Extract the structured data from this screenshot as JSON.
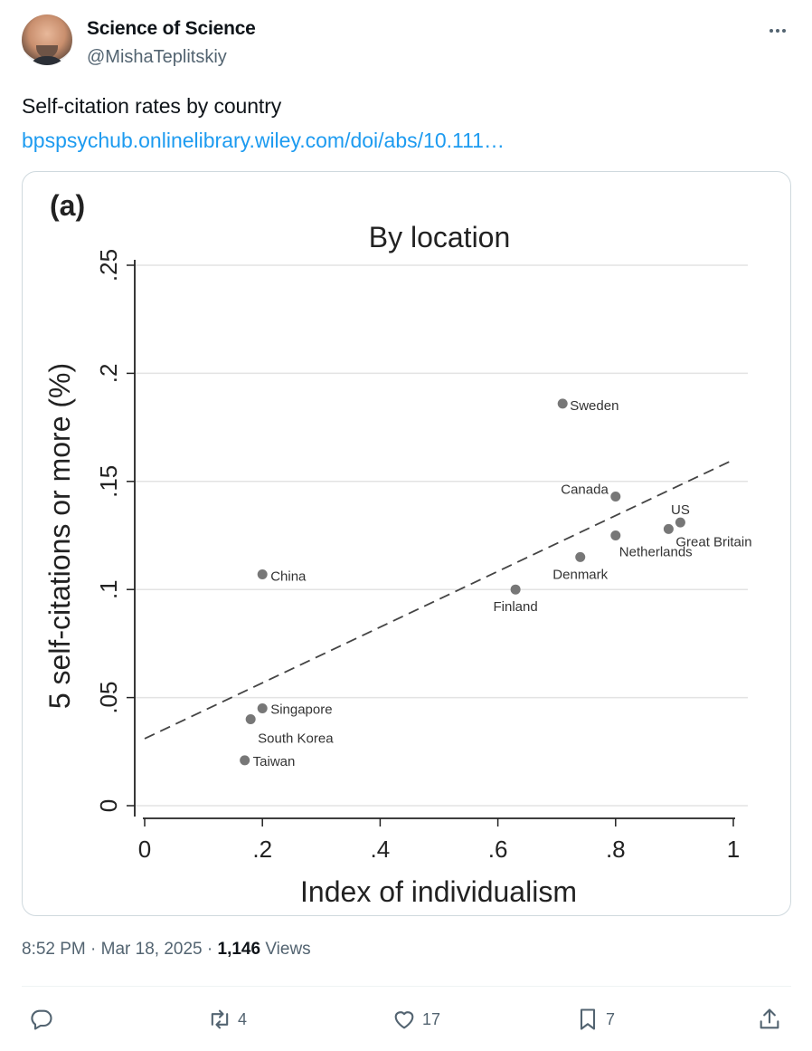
{
  "author": {
    "name": "Science of Science",
    "handle": "@MishaTeplitskiy"
  },
  "tweet": {
    "text": "Self-citation rates by country",
    "link_text": "bpspsychub.onlinelibrary.wiley.com/doi/abs/10.111…"
  },
  "meta": {
    "time": "8:52 PM",
    "sep1": "·",
    "date": "Mar 18, 2025",
    "sep2": "·",
    "views_count": "1,146",
    "views_label": "Views"
  },
  "actions": {
    "reply": {
      "icon": "reply-icon",
      "count": ""
    },
    "retweet": {
      "icon": "retweet-icon",
      "count": "4"
    },
    "like": {
      "icon": "heart-icon",
      "count": "17"
    },
    "bookmark": {
      "icon": "bookmark-icon",
      "count": "7"
    },
    "share": {
      "icon": "share-icon",
      "count": ""
    }
  },
  "colors": {
    "link": "#1d9bf0",
    "muted": "#536471",
    "marker": "#777777"
  },
  "chart_data": {
    "type": "scatter",
    "panel_label": "(a)",
    "title": "By location",
    "xlabel": "Index of individualism",
    "ylabel": "5 self-citations or more (%)",
    "xlim": [
      0,
      1
    ],
    "ylim": [
      0,
      0.25
    ],
    "xticks": [
      0,
      0.2,
      0.4,
      0.6,
      0.8,
      1
    ],
    "xtick_labels": [
      "0",
      ".2",
      ".4",
      ".6",
      ".8",
      "1"
    ],
    "yticks": [
      0,
      0.05,
      0.1,
      0.15,
      0.2,
      0.25
    ],
    "ytick_labels": [
      "0",
      ".05",
      ".1",
      ".15",
      ".2",
      ".25"
    ],
    "grid": "horizontal",
    "points": [
      {
        "label": "Sweden",
        "x": 0.71,
        "y": 0.186
      },
      {
        "label": "Canada",
        "x": 0.8,
        "y": 0.143
      },
      {
        "label": "US",
        "x": 0.91,
        "y": 0.131
      },
      {
        "label": "Great Britain",
        "x": 0.89,
        "y": 0.128
      },
      {
        "label": "Netherlands",
        "x": 0.8,
        "y": 0.125
      },
      {
        "label": "Denmark",
        "x": 0.74,
        "y": 0.115
      },
      {
        "label": "Finland",
        "x": 0.63,
        "y": 0.1
      },
      {
        "label": "China",
        "x": 0.2,
        "y": 0.107
      },
      {
        "label": "Singapore",
        "x": 0.2,
        "y": 0.045
      },
      {
        "label": "South Korea",
        "x": 0.18,
        "y": 0.04
      },
      {
        "label": "Taiwan",
        "x": 0.17,
        "y": 0.021
      }
    ],
    "fit_line": {
      "x": [
        0,
        1
      ],
      "y": [
        0.031,
        0.16
      ],
      "style": "dashed"
    }
  }
}
